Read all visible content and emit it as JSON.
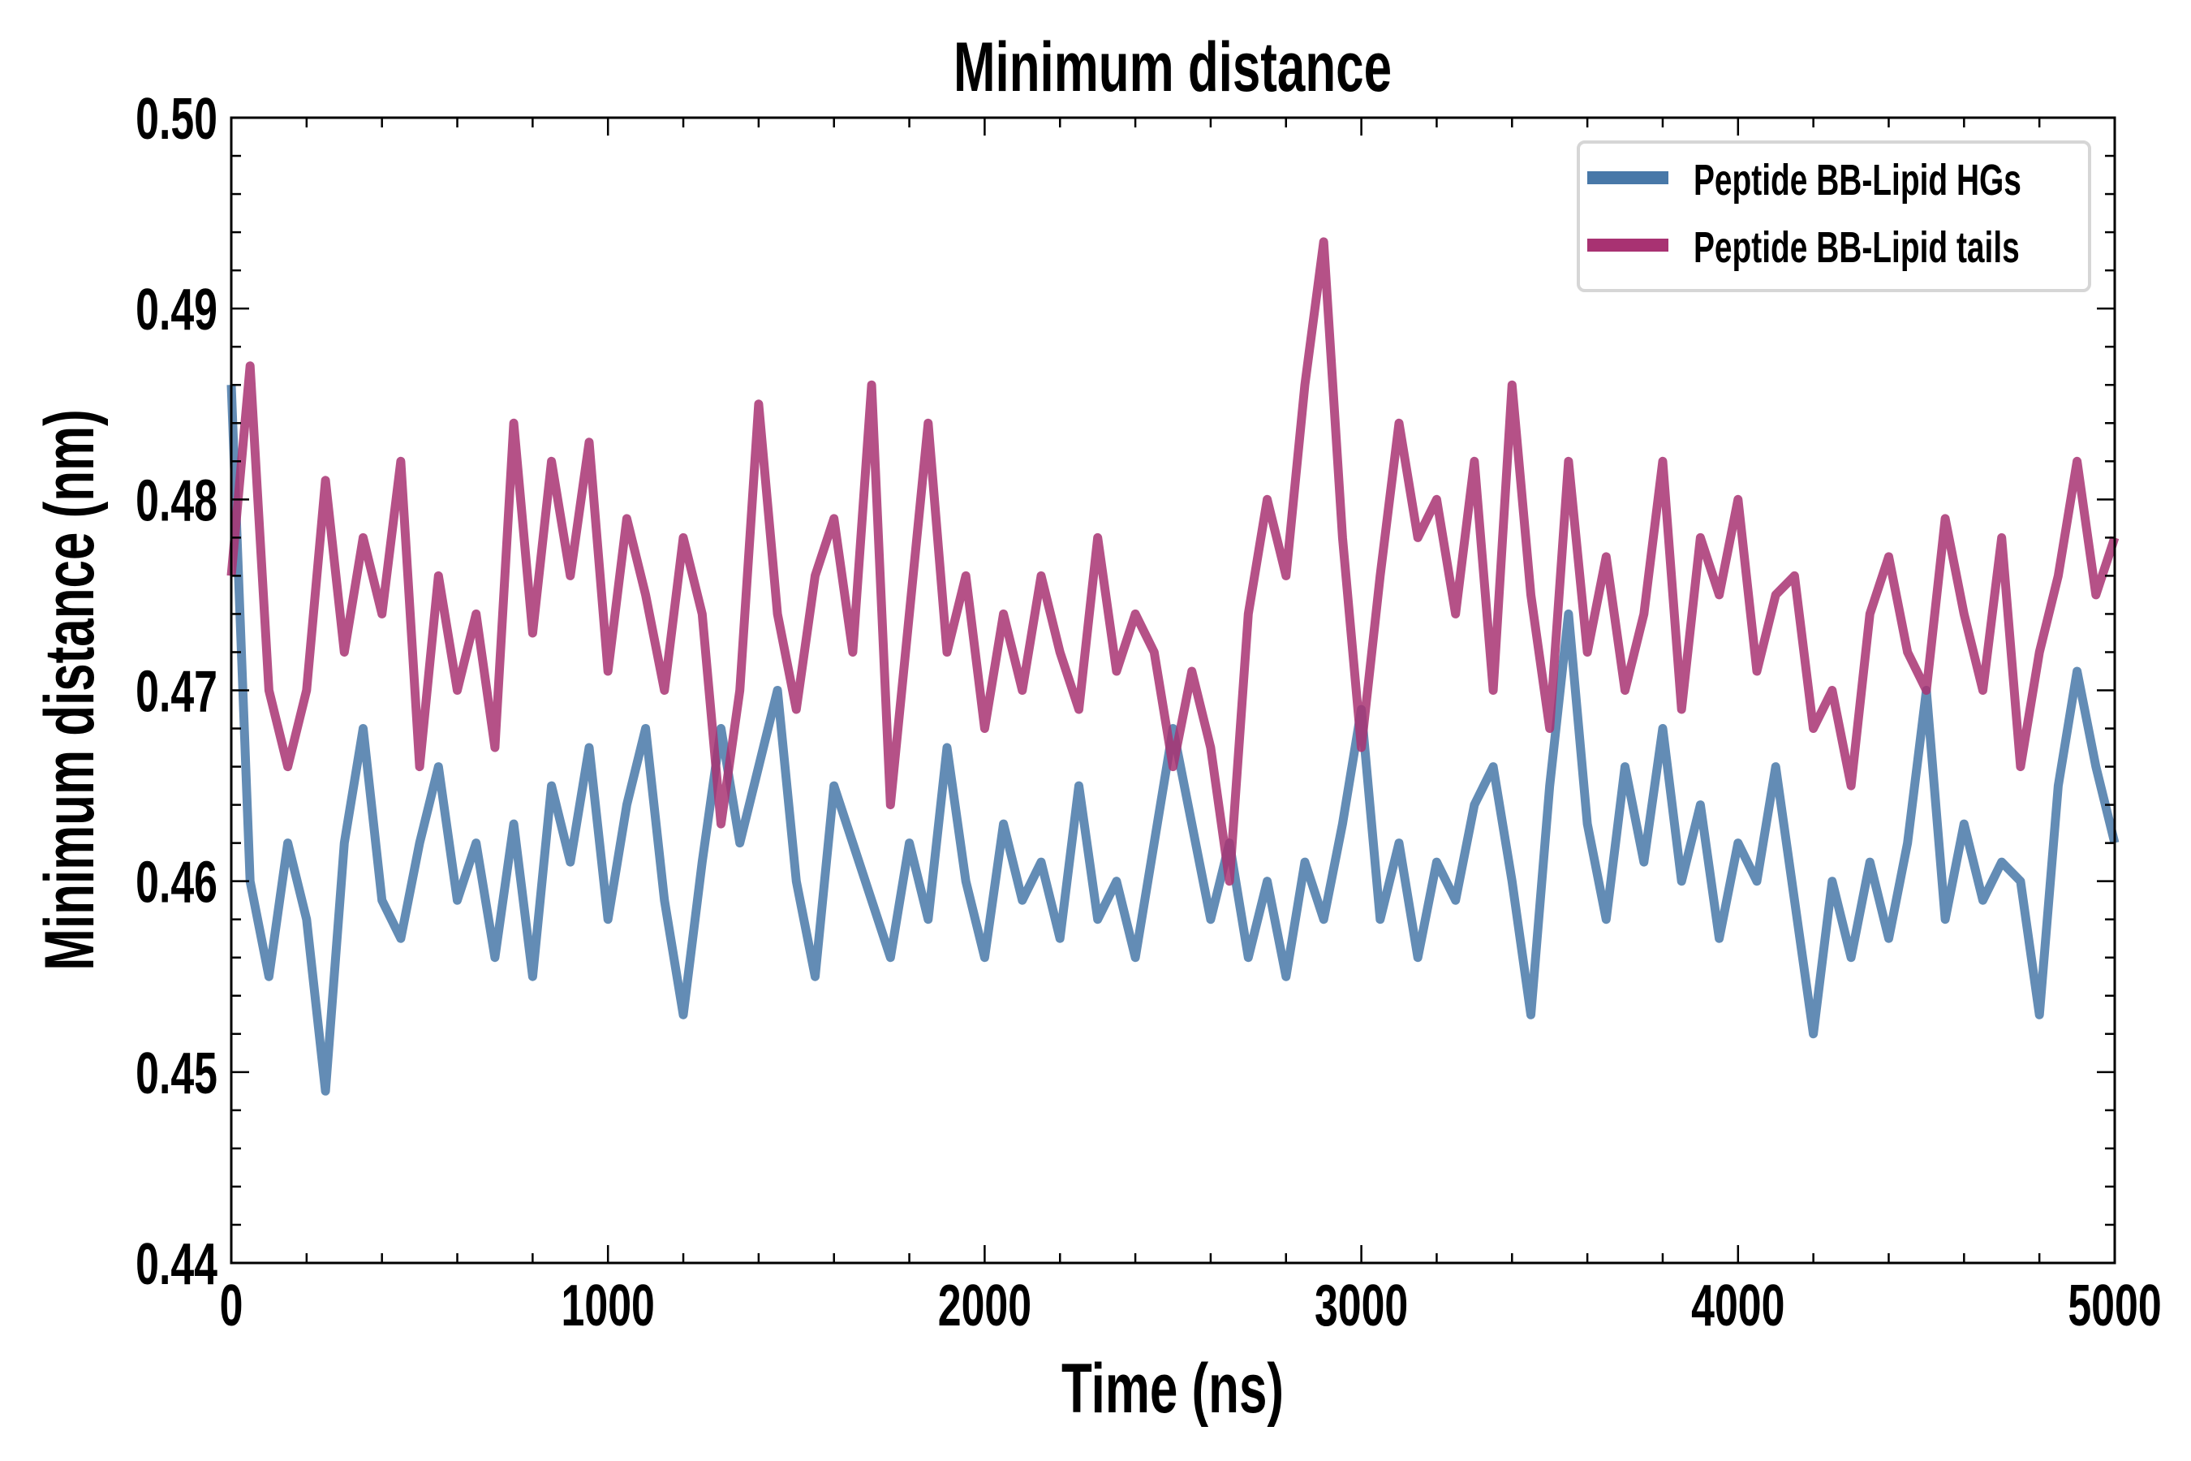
{
  "chart_data": {
    "type": "line",
    "title": "Minimum distance",
    "xlabel": "Time (ns)",
    "ylabel": "Minimum distance (nm)",
    "xlim": [
      0,
      5000
    ],
    "ylim": [
      0.44,
      0.5
    ],
    "xticks": [
      "0",
      "1000",
      "2000",
      "3000",
      "4000",
      "5000"
    ],
    "yticks": [
      "0.44",
      "0.45",
      "0.46",
      "0.47",
      "0.48",
      "0.49",
      "0.50"
    ],
    "grid": false,
    "legend_position": "top-right",
    "x_start": 0,
    "x_step": 50,
    "series": [
      {
        "name": "Peptide BB-Lipid HGs",
        "color": "#4878a8",
        "values": [
          0.486,
          0.46,
          0.455,
          0.462,
          0.458,
          0.449,
          0.462,
          0.468,
          0.459,
          0.457,
          0.462,
          0.466,
          0.459,
          0.462,
          0.456,
          0.463,
          0.455,
          0.465,
          0.461,
          0.467,
          0.458,
          0.464,
          0.468,
          0.459,
          0.453,
          0.461,
          0.468,
          0.462,
          0.466,
          0.47,
          0.46,
          0.455,
          0.465,
          0.462,
          0.459,
          0.456,
          0.462,
          0.458,
          0.467,
          0.46,
          0.456,
          0.463,
          0.459,
          0.461,
          0.457,
          0.465,
          0.458,
          0.46,
          0.456,
          0.462,
          0.468,
          0.463,
          0.458,
          0.462,
          0.456,
          0.46,
          0.455,
          0.461,
          0.458,
          0.463,
          0.469,
          0.458,
          0.462,
          0.456,
          0.461,
          0.459,
          0.464,
          0.466,
          0.46,
          0.453,
          0.465,
          0.474,
          0.463,
          0.458,
          0.466,
          0.461,
          0.468,
          0.46,
          0.464,
          0.457,
          0.462,
          0.46,
          0.466,
          0.459,
          0.452,
          0.46,
          0.456,
          0.461,
          0.457,
          0.462,
          0.47,
          0.458,
          0.463,
          0.459,
          0.461,
          0.46,
          0.453,
          0.465,
          0.471,
          0.466,
          0.462
        ]
      },
      {
        "name": "Peptide BB-Lipid tails",
        "color": "#a83272",
        "values": [
          0.476,
          0.487,
          0.47,
          0.466,
          0.47,
          0.481,
          0.472,
          0.478,
          0.474,
          0.482,
          0.466,
          0.476,
          0.47,
          0.474,
          0.467,
          0.484,
          0.473,
          0.482,
          0.476,
          0.483,
          0.471,
          0.479,
          0.475,
          0.47,
          0.478,
          0.474,
          0.463,
          0.47,
          0.485,
          0.474,
          0.469,
          0.476,
          0.479,
          0.472,
          0.486,
          0.464,
          0.474,
          0.484,
          0.472,
          0.476,
          0.468,
          0.474,
          0.47,
          0.476,
          0.472,
          0.469,
          0.478,
          0.471,
          0.474,
          0.472,
          0.466,
          0.471,
          0.467,
          0.46,
          0.474,
          0.48,
          0.476,
          0.486,
          0.4935,
          0.478,
          0.467,
          0.476,
          0.484,
          0.478,
          0.48,
          0.474,
          0.482,
          0.47,
          0.486,
          0.475,
          0.468,
          0.482,
          0.472,
          0.477,
          0.47,
          0.474,
          0.482,
          0.469,
          0.478,
          0.475,
          0.48,
          0.471,
          0.475,
          0.476,
          0.468,
          0.47,
          0.465,
          0.474,
          0.477,
          0.472,
          0.47,
          0.479,
          0.474,
          0.47,
          0.478,
          0.466,
          0.472,
          0.476,
          0.482,
          0.475,
          0.478
        ]
      }
    ]
  }
}
